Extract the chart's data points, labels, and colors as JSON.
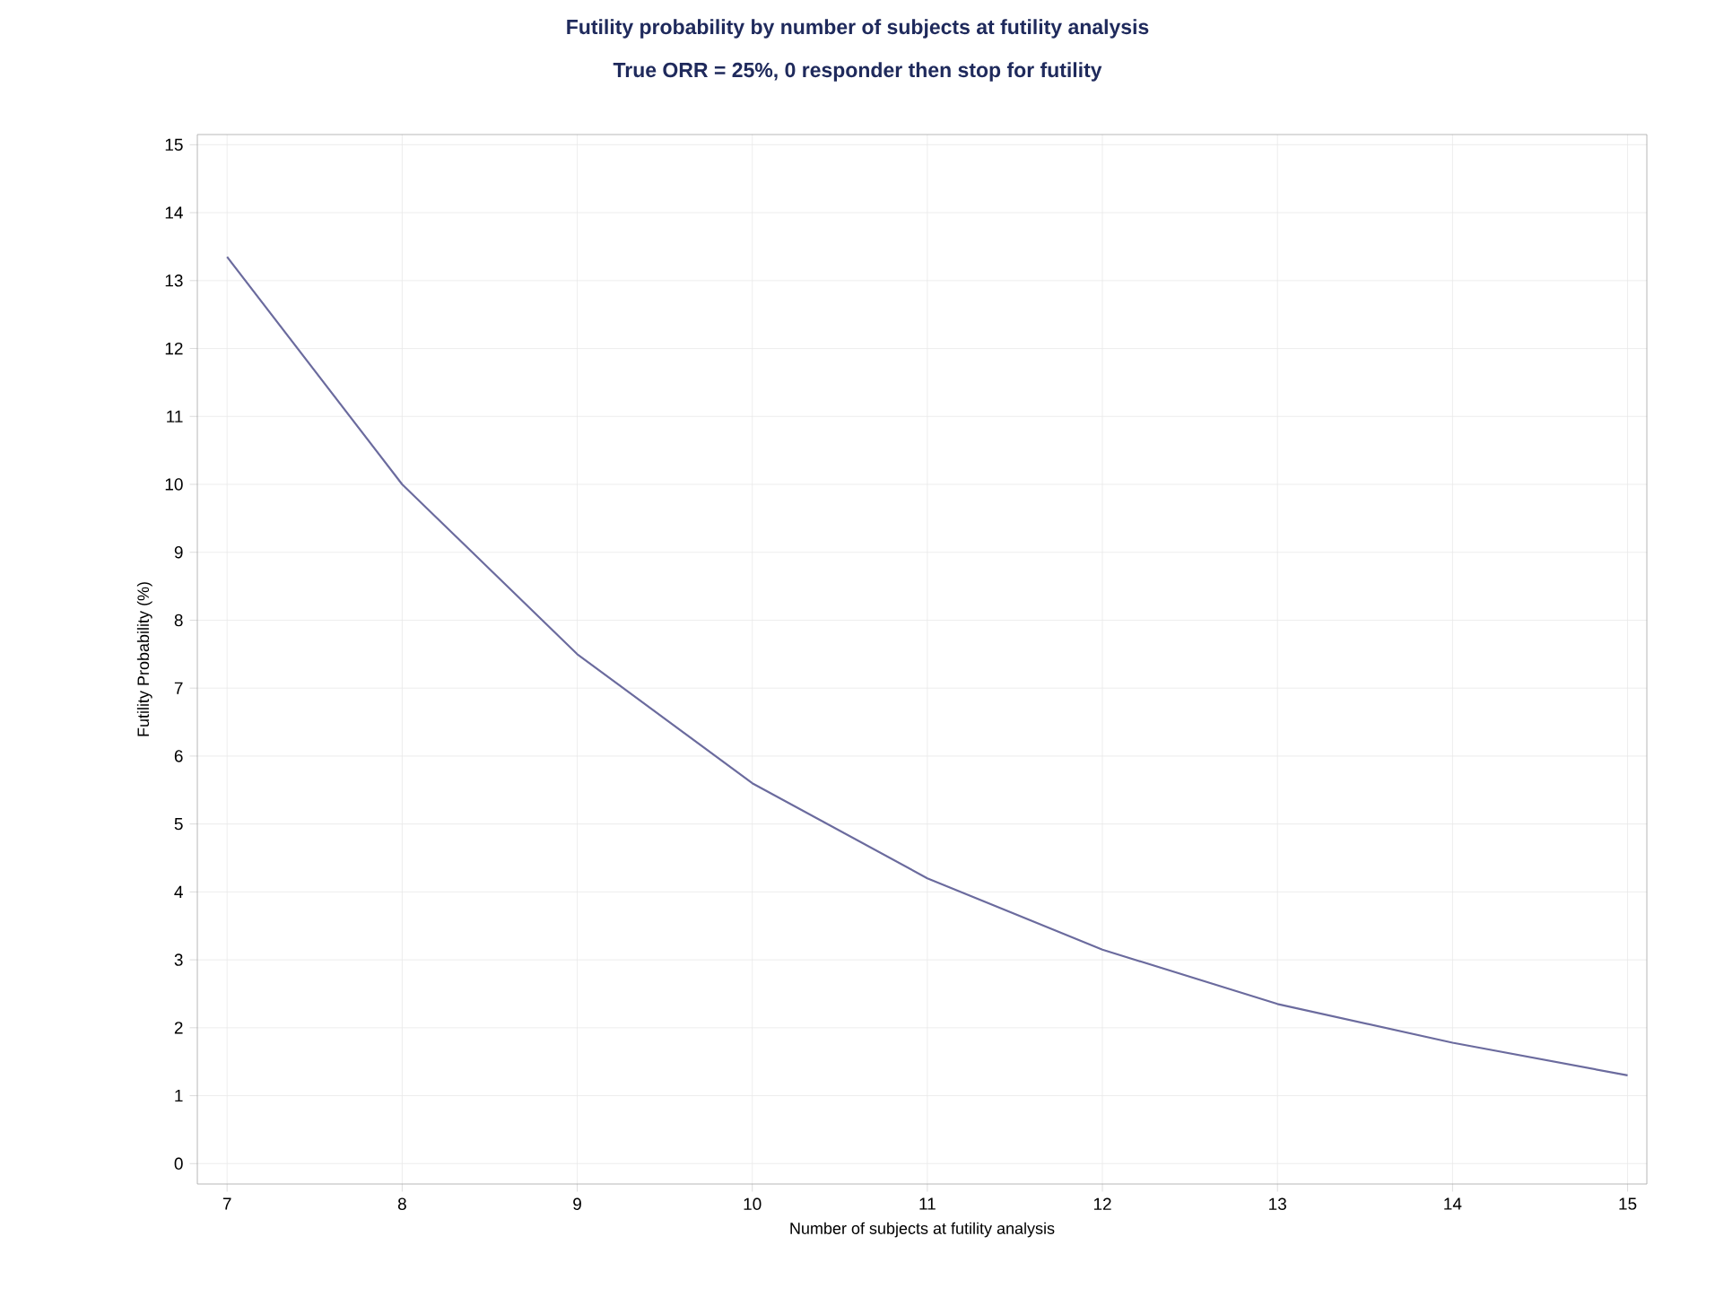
{
  "chart_data": {
    "type": "line",
    "title": "Futility probability by number of subjects at futility analysis",
    "subtitle": "True ORR = 25%, 0 responder then stop for futility",
    "xlabel": "Number of subjects at futility analysis",
    "ylabel": "Futility Probability (%)",
    "x": [
      7,
      8,
      9,
      10,
      11,
      12,
      13,
      14,
      15
    ],
    "series": [
      {
        "color": "#6b6b9e",
        "values": [
          13.35,
          10.0,
          7.5,
          5.6,
          4.2,
          3.15,
          2.35,
          1.78,
          1.3
        ]
      }
    ],
    "xlim": [
      6.83,
      15.11
    ],
    "ylim": [
      -0.3,
      15.15
    ],
    "xticks": [
      7,
      8,
      9,
      10,
      11,
      12,
      13,
      14,
      15
    ],
    "yticks": [
      0,
      1,
      2,
      3,
      4,
      5,
      6,
      7,
      8,
      9,
      10,
      11,
      12,
      13,
      14,
      15
    ],
    "grid": true,
    "marker": "none",
    "line_style": "solid"
  }
}
